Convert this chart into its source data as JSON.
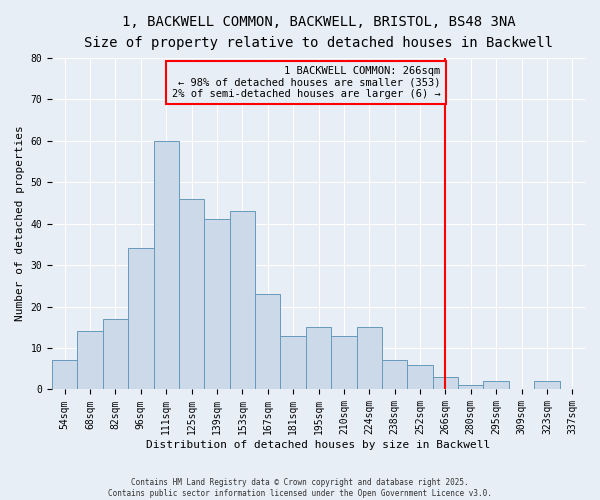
{
  "title1": "1, BACKWELL COMMON, BACKWELL, BRISTOL, BS48 3NA",
  "title2": "Size of property relative to detached houses in Backwell",
  "xlabel": "Distribution of detached houses by size in Backwell",
  "ylabel": "Number of detached properties",
  "categories": [
    "54sqm",
    "68sqm",
    "82sqm",
    "96sqm",
    "111sqm",
    "125sqm",
    "139sqm",
    "153sqm",
    "167sqm",
    "181sqm",
    "195sqm",
    "210sqm",
    "224sqm",
    "238sqm",
    "252sqm",
    "266sqm",
    "280sqm",
    "295sqm",
    "309sqm",
    "323sqm",
    "337sqm"
  ],
  "values": [
    7,
    14,
    17,
    34,
    60,
    46,
    41,
    43,
    23,
    13,
    15,
    13,
    15,
    7,
    6,
    3,
    1,
    2,
    0,
    2,
    0
  ],
  "bar_color": "#ccd9e8",
  "bar_edge_color": "#6699bb",
  "vline_x_index": 15,
  "vline_color": "red",
  "annotation_line1": "1 BACKWELL COMMON: 266sqm",
  "annotation_line2": "← 98% of detached houses are smaller (353)",
  "annotation_line3": "2% of semi-detached houses are larger (6) →",
  "ylim": [
    0,
    80
  ],
  "yticks": [
    0,
    10,
    20,
    30,
    40,
    50,
    60,
    70,
    80
  ],
  "footer": "Contains HM Land Registry data © Crown copyright and database right 2025.\nContains public sector information licensed under the Open Government Licence v3.0.",
  "background_color": "#e8eef6",
  "grid_color": "#ffffff",
  "title_fontsize": 10,
  "subtitle_fontsize": 9,
  "tick_fontsize": 7,
  "label_fontsize": 8,
  "annotation_fontsize": 7.5,
  "footer_fontsize": 5.5
}
